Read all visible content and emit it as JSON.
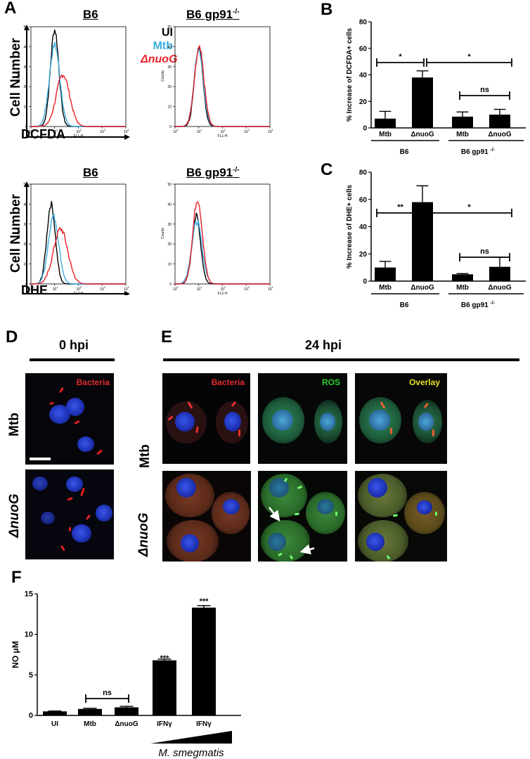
{
  "panel_letters": {
    "A": "A",
    "B": "B",
    "C": "C",
    "D": "D",
    "E": "E",
    "F": "F"
  },
  "panel_a": {
    "row1_titles": [
      "B6",
      "B6 gp91"
    ],
    "row2_titles": [
      "B6",
      "B6 gp91"
    ],
    "knockout_sup": "-/-",
    "y_axis_label": "Cell Number",
    "row1_stain": "DCFDA",
    "row2_stain": "DHE",
    "legend": [
      {
        "name": "UI",
        "color": "#000000"
      },
      {
        "name": "Mtb",
        "color": "#3aaee0"
      },
      {
        "name": "ΔnuoG",
        "color": "#e8202a"
      }
    ],
    "row1_xlabel": "FL1-H",
    "row2_xlabel": "FL2-H",
    "ylabel_small": "Counts",
    "y_ticks": [
      "0",
      "10",
      "20",
      "30",
      "40",
      "50"
    ],
    "x_ticks": [
      "10",
      "10",
      "10",
      "10",
      "10"
    ],
    "x_tick_exp": [
      "0",
      "1",
      "2",
      "3",
      "4"
    ]
  },
  "chart_data": [
    {
      "type": "bar",
      "panel": "B",
      "ylabel": "% Increase of DCFDA+ cells",
      "ylim": [
        0,
        80
      ],
      "yticks": [
        0,
        20,
        40,
        60,
        80
      ],
      "categories": [
        "Mtb",
        "ΔnuoG",
        "Mtb",
        "ΔnuoG"
      ],
      "values": [
        7,
        38,
        8.5,
        10
      ],
      "errors": [
        5.5,
        5,
        3.5,
        4
      ],
      "groups": [
        "B6",
        "B6 gp91"
      ],
      "group_sup": "-/-",
      "significance": [
        "*",
        "*",
        "ns"
      ]
    },
    {
      "type": "bar",
      "panel": "C",
      "ylabel": "% Increase of DHE+ cells",
      "ylim": [
        0,
        80
      ],
      "yticks": [
        0,
        20,
        40,
        60,
        80
      ],
      "categories": [
        "Mtb",
        "ΔnuoG",
        "Mtb",
        "ΔnuoG"
      ],
      "values": [
        10,
        58,
        5,
        10.5
      ],
      "errors": [
        4.5,
        12,
        0.5,
        7
      ],
      "groups": [
        "B6",
        "B6 gp91"
      ],
      "group_sup": "-/-",
      "significance": [
        "**",
        "*",
        "ns"
      ]
    },
    {
      "type": "bar",
      "panel": "F",
      "ylabel": "NO μM",
      "ylim": [
        0,
        15
      ],
      "yticks": [
        0,
        5,
        10,
        15
      ],
      "categories": [
        "UI",
        "Mtb",
        "ΔnuoG",
        "IFNγ",
        "IFNγ"
      ],
      "values": [
        0.5,
        0.8,
        1.0,
        6.8,
        13.3
      ],
      "errors": [
        0.05,
        0.08,
        0.12,
        0.15,
        0.25
      ],
      "significance": [
        "ns",
        "***",
        "***"
      ],
      "bottom_label": "M. smegmatis"
    }
  ],
  "panel_d": {
    "title": "0 hpi",
    "channel": "Bacteria",
    "rows": [
      "Mtb",
      "ΔnuoG"
    ]
  },
  "panel_e": {
    "title": "24 hpi",
    "channels": [
      "Bacteria",
      "ROS",
      "Overlay"
    ],
    "rows": [
      "Mtb",
      "ΔnuoG"
    ]
  }
}
